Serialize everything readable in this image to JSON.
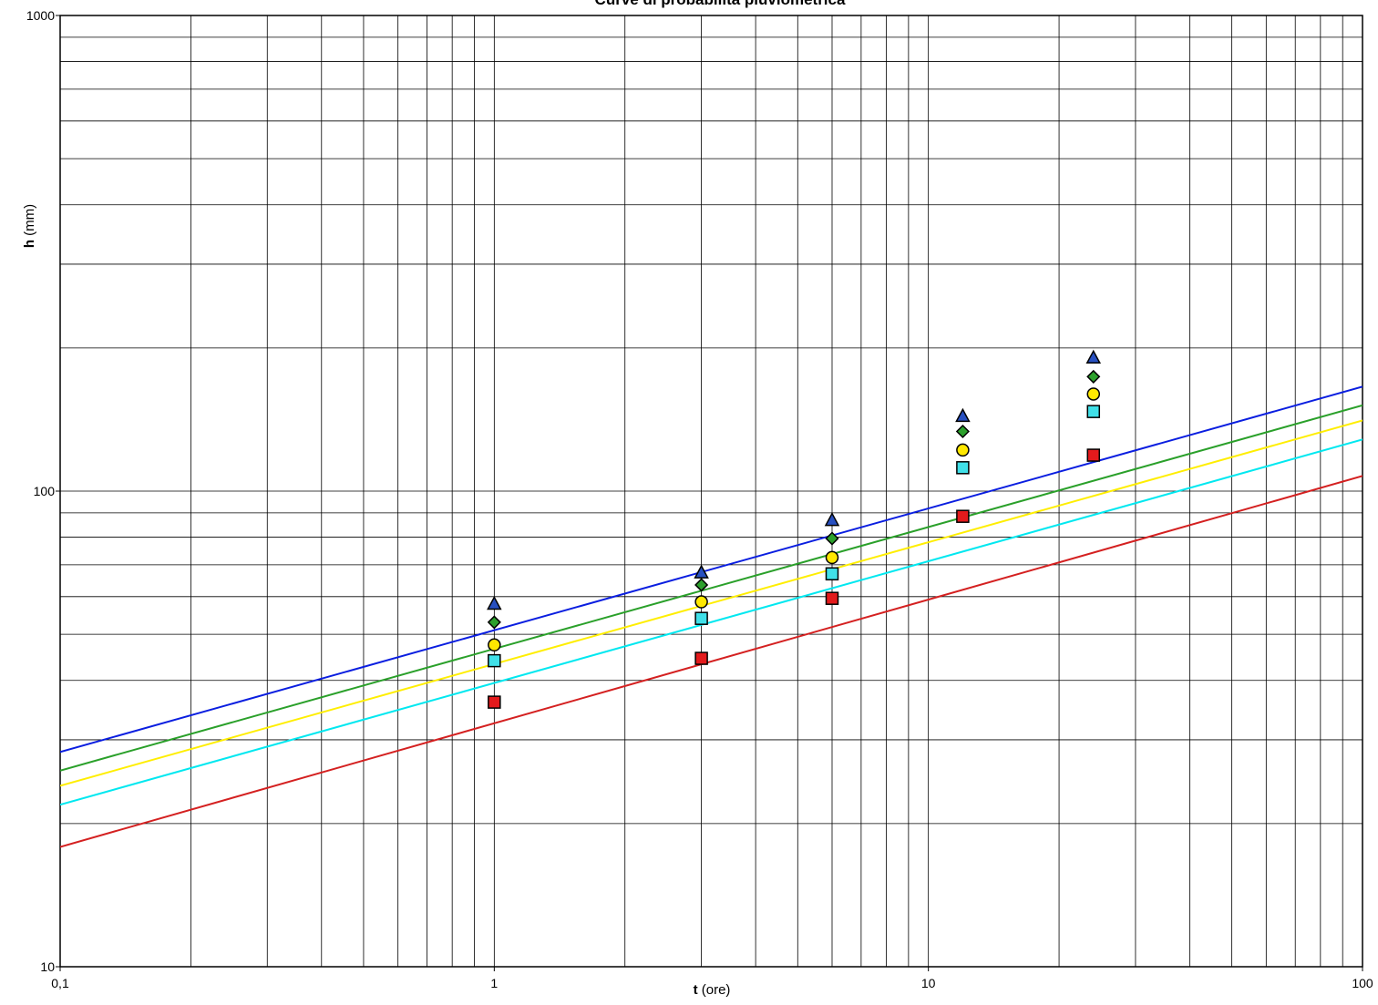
{
  "chart_data": {
    "type": "scatter",
    "title": "Curve di probabilità pluviometrica",
    "xlabel": {
      "bold": "t",
      "rest": " (ore)"
    },
    "ylabel": {
      "bold": "h",
      "rest": " (mm)"
    },
    "x_scale": "log",
    "y_scale": "log",
    "xlim": [
      0.1,
      100
    ],
    "ylim": [
      10,
      1000
    ],
    "x_tick_labels": [
      {
        "value": 0.1,
        "label": "0,1"
      },
      {
        "value": 1,
        "label": "1"
      },
      {
        "value": 10,
        "label": "10"
      },
      {
        "value": 100,
        "label": "100"
      }
    ],
    "y_tick_labels": [
      {
        "value": 10,
        "label": "10"
      },
      {
        "value": 100,
        "label": "100"
      },
      {
        "value": 1000,
        "label": "1000"
      }
    ],
    "grid": true,
    "legend": "none",
    "x": [
      1,
      3,
      6,
      12,
      24
    ],
    "series": [
      {
        "marker": "square",
        "fill": "#e31a1c",
        "line_color": "#d42020",
        "values": [
          36,
          44.5,
          59.5,
          88.5,
          119
        ],
        "fit": {
          "a": 32.5,
          "n": 0.26
        }
      },
      {
        "marker": "square",
        "fill": "#40e0e8",
        "line_color": "#00e8f0",
        "values": [
          44,
          54,
          67,
          112,
          147
        ],
        "fit": {
          "a": 39.5,
          "n": 0.256
        }
      },
      {
        "marker": "circle",
        "fill": "#ffe800",
        "line_color": "#ffee00",
        "values": [
          47.5,
          58.5,
          72.5,
          122,
          160
        ],
        "fit": {
          "a": 43.3,
          "n": 0.256
        }
      },
      {
        "marker": "diamond",
        "fill": "#2ca02c",
        "line_color": "#2aa02a",
        "values": [
          53,
          63.5,
          79.5,
          133.5,
          174
        ],
        "fit": {
          "a": 46.6,
          "n": 0.256
        }
      },
      {
        "marker": "triangle",
        "fill": "#2850c0",
        "line_color": "#0a1ee0",
        "values": [
          58,
          67.5,
          87,
          144,
          191
        ],
        "fit": {
          "a": 51,
          "n": 0.256
        }
      }
    ]
  }
}
